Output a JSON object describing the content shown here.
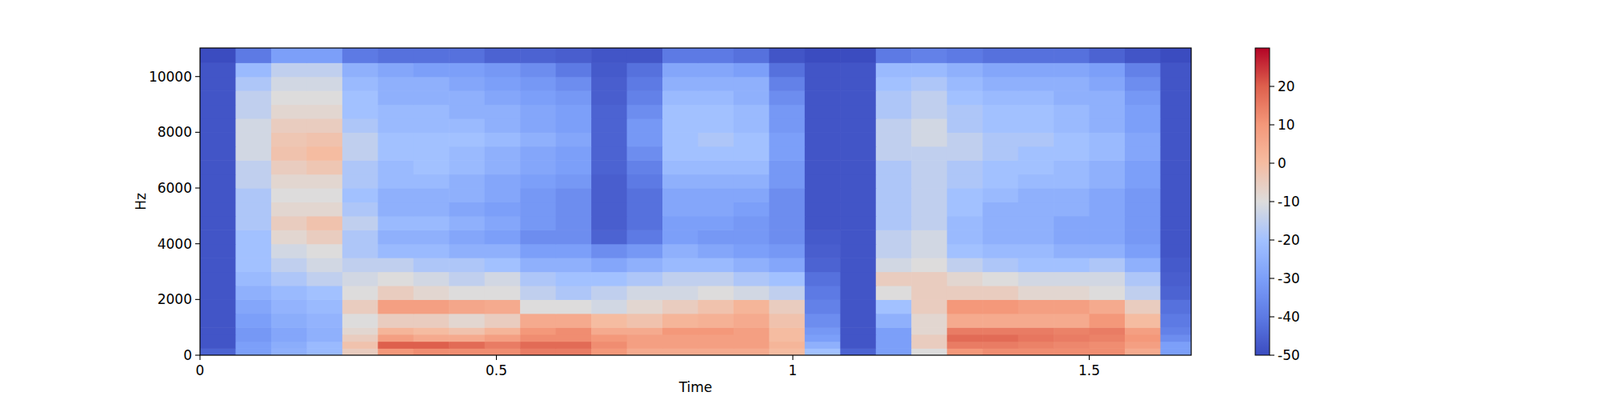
{
  "chart_data": {
    "type": "heatmap",
    "x_label": "Time",
    "y_label": "Hz",
    "color": "coolwarm",
    "xlim": [
      0,
      1.672
    ],
    "ylim": [
      0,
      11025
    ],
    "xticks": [
      0,
      0.5,
      1,
      1.5
    ],
    "yticks": [
      0,
      2000,
      4000,
      6000,
      8000,
      10000
    ],
    "x_edges": [
      0,
      0.06,
      0.12,
      0.18,
      0.24,
      0.3,
      0.36,
      0.42,
      0.48,
      0.54,
      0.6,
      0.66,
      0.72,
      0.78,
      0.84,
      0.9,
      0.96,
      1.02,
      1.08,
      1.14,
      1.2,
      1.26,
      1.32,
      1.38,
      1.44,
      1.5,
      1.56,
      1.62,
      1.68
    ],
    "y_edges": [
      0,
      250,
      500,
      750,
      1000,
      1500,
      2000,
      2500,
      3000,
      3500,
      4000,
      4500,
      5000,
      5500,
      6000,
      6500,
      7000,
      7500,
      8000,
      8500,
      9000,
      9500,
      10000,
      10500,
      11025
    ],
    "z": [
      [
        -45,
        -30,
        -25,
        -22,
        -5,
        10,
        12,
        12,
        12,
        15,
        15,
        10,
        5,
        5,
        5,
        5,
        0,
        -20,
        -45,
        -30,
        -10,
        10,
        12,
        12,
        12,
        12,
        5,
        -30
      ],
      [
        -48,
        -30,
        -26,
        -22,
        -2,
        20,
        20,
        18,
        15,
        18,
        18,
        12,
        8,
        8,
        8,
        8,
        2,
        -25,
        -48,
        -30,
        -5,
        15,
        15,
        14,
        13,
        12,
        8,
        -30
      ],
      [
        -48,
        -32,
        -28,
        -25,
        -5,
        8,
        5,
        5,
        8,
        12,
        12,
        10,
        8,
        8,
        8,
        8,
        0,
        -30,
        -48,
        -30,
        -5,
        18,
        18,
        16,
        15,
        14,
        10,
        -35
      ],
      [
        -48,
        -32,
        -28,
        -25,
        -8,
        2,
        0,
        -2,
        2,
        10,
        12,
        5,
        5,
        10,
        10,
        8,
        0,
        -32,
        -48,
        -30,
        -8,
        15,
        15,
        15,
        14,
        15,
        8,
        -38
      ],
      [
        -48,
        -30,
        -26,
        -24,
        -10,
        -5,
        -5,
        -8,
        -5,
        5,
        5,
        0,
        -2,
        2,
        3,
        5,
        -2,
        -35,
        -48,
        -25,
        -8,
        5,
        5,
        5,
        5,
        10,
        0,
        -40
      ],
      [
        -48,
        -28,
        -24,
        -22,
        -5,
        8,
        8,
        6,
        5,
        -10,
        -10,
        -12,
        -8,
        -5,
        -2,
        2,
        -5,
        -38,
        -48,
        -20,
        -5,
        10,
        10,
        8,
        8,
        5,
        -5,
        -42
      ],
      [
        -48,
        -25,
        -22,
        -20,
        -10,
        -5,
        -8,
        -10,
        -10,
        -15,
        -18,
        -15,
        -12,
        -12,
        -10,
        -12,
        -15,
        -40,
        -48,
        -10,
        -5,
        -5,
        -5,
        -8,
        -8,
        -10,
        -15,
        -45
      ],
      [
        -48,
        -22,
        -18,
        -15,
        -12,
        -10,
        -12,
        -15,
        -12,
        -18,
        -20,
        -20,
        -18,
        -15,
        -15,
        -18,
        -20,
        -42,
        -48,
        -5,
        -5,
        -8,
        -10,
        -12,
        -12,
        -12,
        -18,
        -46
      ],
      [
        -48,
        -20,
        -15,
        -12,
        -15,
        -15,
        -18,
        -18,
        -20,
        -25,
        -25,
        -28,
        -25,
        -22,
        -22,
        -25,
        -28,
        -45,
        -48,
        -12,
        -10,
        -15,
        -18,
        -20,
        -20,
        -18,
        -25,
        -47
      ],
      [
        -48,
        -20,
        -12,
        -10,
        -18,
        -22,
        -22,
        -25,
        -25,
        -30,
        -30,
        -35,
        -32,
        -25,
        -28,
        -30,
        -32,
        -46,
        -48,
        -15,
        -12,
        -20,
        -22,
        -22,
        -25,
        -25,
        -30,
        -48
      ],
      [
        -48,
        -20,
        -8,
        -5,
        -18,
        -25,
        -25,
        -28,
        -30,
        -35,
        -35,
        -45,
        -40,
        -30,
        -32,
        -32,
        -35,
        -47,
        -48,
        -15,
        -12,
        -22,
        -25,
        -25,
        -28,
        -28,
        -32,
        -48
      ],
      [
        -48,
        -18,
        -5,
        -2,
        -15,
        -22,
        -22,
        -25,
        -28,
        -32,
        -35,
        -46,
        -42,
        -30,
        -30,
        -32,
        -35,
        -48,
        -48,
        -18,
        -15,
        -22,
        -25,
        -25,
        -28,
        -28,
        -32,
        -48
      ],
      [
        -48,
        -18,
        -8,
        -8,
        -18,
        -25,
        -25,
        -28,
        -30,
        -32,
        -35,
        -46,
        -42,
        -28,
        -28,
        -30,
        -35,
        -48,
        -48,
        -18,
        -15,
        -20,
        -25,
        -25,
        -25,
        -28,
        -32,
        -48
      ],
      [
        -48,
        -18,
        -10,
        -10,
        -20,
        -25,
        -25,
        -25,
        -28,
        -32,
        -35,
        -46,
        -42,
        -28,
        -28,
        -28,
        -35,
        -48,
        -48,
        -18,
        -15,
        -20,
        -22,
        -25,
        -25,
        -28,
        -32,
        -48
      ],
      [
        -48,
        -15,
        -8,
        -8,
        -18,
        -22,
        -22,
        -25,
        -28,
        -30,
        -32,
        -46,
        -40,
        -25,
        -25,
        -25,
        -32,
        -48,
        -48,
        -18,
        -15,
        -18,
        -20,
        -22,
        -22,
        -25,
        -30,
        -48
      ],
      [
        -48,
        -15,
        -5,
        -3,
        -18,
        -22,
        -20,
        -22,
        -25,
        -28,
        -30,
        -45,
        -38,
        -22,
        -22,
        -22,
        -32,
        -48,
        -48,
        -18,
        -15,
        -18,
        -20,
        -20,
        -22,
        -25,
        -30,
        -48
      ],
      [
        -48,
        -12,
        -2,
        0,
        -15,
        -20,
        -20,
        -22,
        -25,
        -28,
        -30,
        -45,
        -35,
        -20,
        -20,
        -20,
        -30,
        -48,
        -48,
        -15,
        -15,
        -15,
        -18,
        -20,
        -20,
        -22,
        -28,
        -48
      ],
      [
        -48,
        -12,
        -3,
        -2,
        -15,
        -20,
        -20,
        -20,
        -22,
        -25,
        -28,
        -45,
        -32,
        -20,
        -18,
        -20,
        -30,
        -48,
        -48,
        -15,
        -12,
        -15,
        -18,
        -18,
        -20,
        -22,
        -28,
        -48
      ],
      [
        -48,
        -12,
        -5,
        -5,
        -18,
        -22,
        -22,
        -22,
        -25,
        -28,
        -30,
        -45,
        -32,
        -20,
        -20,
        -22,
        -32,
        -48,
        -48,
        -15,
        -12,
        -18,
        -20,
        -20,
        -22,
        -25,
        -30,
        -48
      ],
      [
        -48,
        -15,
        -8,
        -8,
        -20,
        -22,
        -22,
        -25,
        -25,
        -28,
        -30,
        -45,
        -35,
        -20,
        -20,
        -22,
        -32,
        -48,
        -48,
        -18,
        -15,
        -18,
        -20,
        -20,
        -22,
        -25,
        -30,
        -48
      ],
      [
        -48,
        -15,
        -10,
        -10,
        -20,
        -25,
        -25,
        -25,
        -28,
        -30,
        -32,
        -46,
        -38,
        -22,
        -22,
        -25,
        -35,
        -48,
        -48,
        -18,
        -15,
        -20,
        -22,
        -22,
        -25,
        -25,
        -32,
        -48
      ],
      [
        -48,
        -18,
        -12,
        -12,
        -22,
        -25,
        -25,
        -28,
        -30,
        -32,
        -35,
        -46,
        -40,
        -25,
        -25,
        -25,
        -38,
        -48,
        -48,
        -20,
        -18,
        -22,
        -25,
        -25,
        -25,
        -28,
        -35,
        -48
      ],
      [
        -48,
        -22,
        -15,
        -15,
        -25,
        -28,
        -30,
        -30,
        -32,
        -35,
        -40,
        -47,
        -42,
        -28,
        -28,
        -30,
        -42,
        -48,
        -48,
        -22,
        -22,
        -25,
        -28,
        -28,
        -28,
        -30,
        -38,
        -48
      ],
      [
        -50,
        -40,
        -30,
        -30,
        -40,
        -42,
        -42,
        -42,
        -45,
        -45,
        -46,
        -48,
        -48,
        -40,
        -40,
        -42,
        -48,
        -50,
        -50,
        -40,
        -38,
        -40,
        -42,
        -42,
        -42,
        -45,
        -48,
        -50
      ]
    ],
    "clim": [
      -50,
      30
    ],
    "cticks": [
      -50,
      -40,
      -30,
      -20,
      -10,
      0,
      10,
      20
    ]
  }
}
